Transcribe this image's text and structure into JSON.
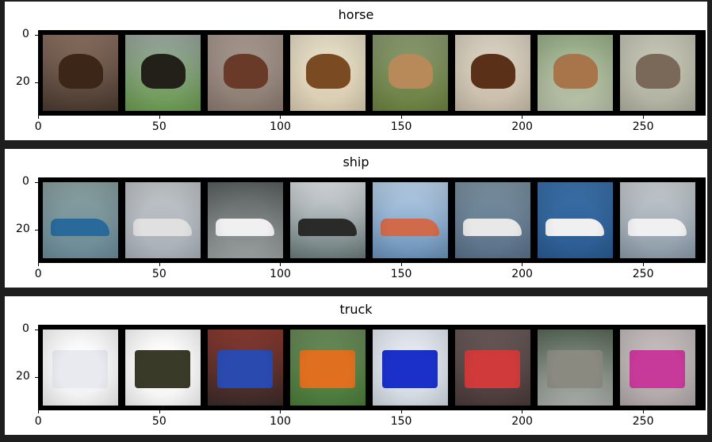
{
  "panels": [
    {
      "title": "horse",
      "yticks": [
        "0",
        "20"
      ],
      "xticks": [
        "0",
        "50",
        "100",
        "150",
        "200",
        "250"
      ],
      "images": [
        {
          "bg": [
            "#8a7060",
            "#4a3a30"
          ],
          "subject": "#3b2618"
        },
        {
          "bg": [
            "#9aa8a0",
            "#6a9a50"
          ],
          "subject": "#222018"
        },
        {
          "bg": [
            "#a89a90",
            "#8a7a70"
          ],
          "subject": "#6a3a28"
        },
        {
          "bg": [
            "#e8e0c8",
            "#d8ccb0"
          ],
          "subject": "#7a4a22"
        },
        {
          "bg": [
            "#8a9a70",
            "#6a8040"
          ],
          "subject": "#b88a5a"
        },
        {
          "bg": [
            "#dcd4c4",
            "#c8bca8"
          ],
          "subject": "#5a3018"
        },
        {
          "bg": [
            "#9ab08a",
            "#b8c0a8"
          ],
          "subject": "#a8744a"
        },
        {
          "bg": [
            "#c8c8b8",
            "#b0b0a0"
          ],
          "subject": "#7a6858"
        }
      ]
    },
    {
      "title": "ship",
      "yticks": [
        "0",
        "20"
      ],
      "xticks": [
        "0",
        "50",
        "100",
        "150",
        "200",
        "250"
      ],
      "images": [
        {
          "bg": [
            "#8aa0a0",
            "#6a8a98"
          ],
          "subject": "#2a6a9a"
        },
        {
          "bg": [
            "#c0c4c8",
            "#a8b0b8"
          ],
          "subject": "#e0e0e0"
        },
        {
          "bg": [
            "#5a6060",
            "#9aa0a0"
          ],
          "subject": "#f0f0f0"
        },
        {
          "bg": [
            "#d8dce0",
            "#6a7a7a"
          ],
          "subject": "#2a2a28"
        },
        {
          "bg": [
            "#b8d0e8",
            "#6a90b8"
          ],
          "subject": "#d06a4a"
        },
        {
          "bg": [
            "#7a90a0",
            "#5a7088"
          ],
          "subject": "#e8e8e8"
        },
        {
          "bg": [
            "#3a70a8",
            "#2a5a90"
          ],
          "subject": "#f0f0f0"
        },
        {
          "bg": [
            "#c8ccd0",
            "#8a9aa8"
          ],
          "subject": "#f0f0f0"
        }
      ]
    },
    {
      "title": "truck",
      "yticks": [
        "0",
        "20"
      ],
      "xticks": [
        "0",
        "50",
        "100",
        "150",
        "200",
        "250"
      ],
      "images": [
        {
          "bg": [
            "#ffffff",
            "#f0f0f0"
          ],
          "subject": "#e8eaf0"
        },
        {
          "bg": [
            "#ffffff",
            "#f4f4f4"
          ],
          "subject": "#3a3a28"
        },
        {
          "bg": [
            "#8a3a30",
            "#3a2a28"
          ],
          "subject": "#2a4ab0"
        },
        {
          "bg": [
            "#6a8a5a",
            "#4a7a3a"
          ],
          "subject": "#e07020"
        },
        {
          "bg": [
            "#e8ecf4",
            "#d0d8e0"
          ],
          "subject": "#1a30c8"
        },
        {
          "bg": [
            "#6a5a5a",
            "#4a3a3a"
          ],
          "subject": "#d03a3a"
        },
        {
          "bg": [
            "#5a6a5a",
            "#a8aca8"
          ],
          "subject": "#8a8a80"
        },
        {
          "bg": [
            "#c8c0c0",
            "#b0a8a8"
          ],
          "subject": "#c83a9a"
        }
      ]
    }
  ]
}
